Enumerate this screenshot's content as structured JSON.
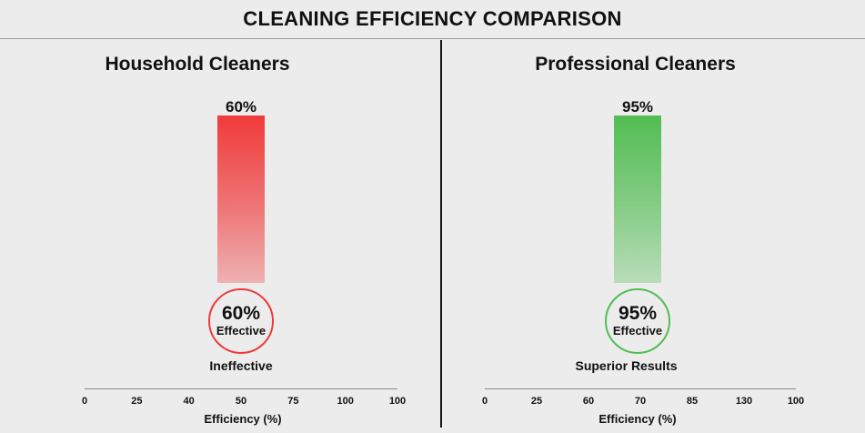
{
  "title": "CLEANING EFFICIENCY COMPARISON",
  "chart_data": [
    {
      "type": "bar",
      "title": "Household Cleaners",
      "value": 60,
      "value_label": "60%",
      "badge_percent": "60%",
      "badge_text": "Effective",
      "verdict": "Ineffective",
      "bar_color": "#f03a3a",
      "xlabel": "Efficiency (%)",
      "tick_labels": [
        "0",
        "25",
        "40",
        "50",
        "75",
        "100",
        "100"
      ]
    },
    {
      "type": "bar",
      "title": "Professional Cleaners",
      "value": 95,
      "value_label": "95%",
      "badge_percent": "95%",
      "badge_text": "Effective",
      "verdict": "Superior Results",
      "bar_color": "#52bd52",
      "xlabel": "Efficiency (%)",
      "tick_labels": [
        "0",
        "25",
        "60",
        "70",
        "85",
        "130",
        "100"
      ]
    }
  ]
}
